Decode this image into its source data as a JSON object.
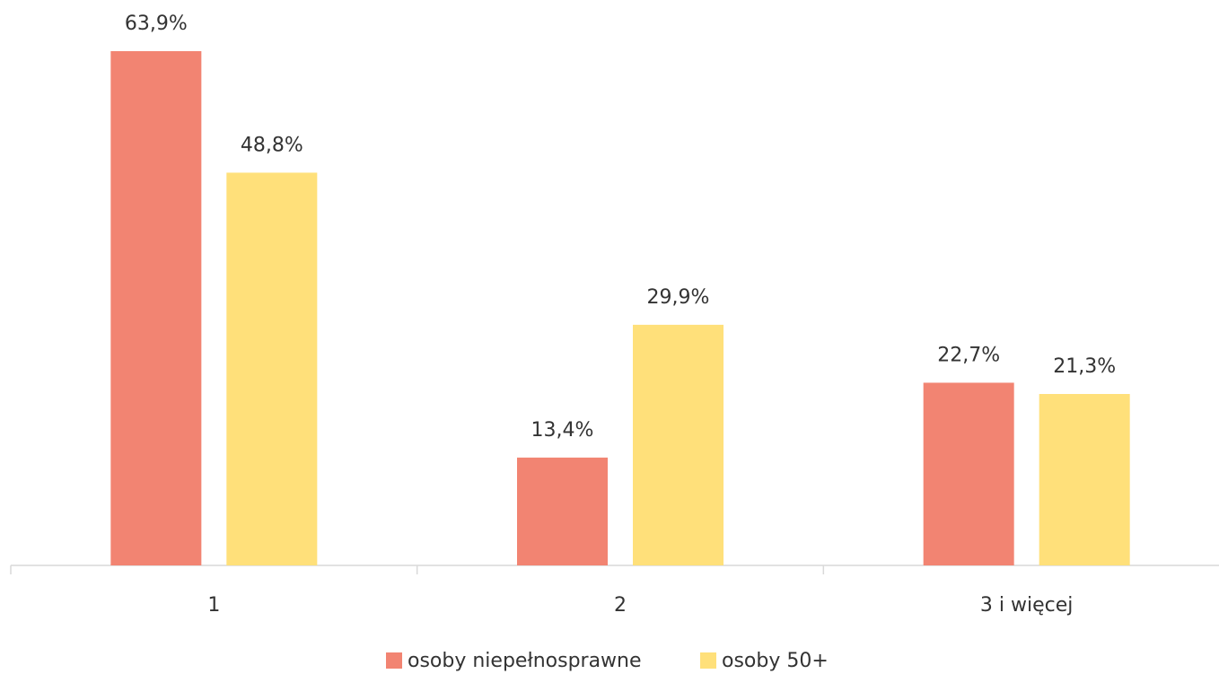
{
  "chart_data": {
    "type": "bar",
    "categories": [
      "1",
      "2",
      "3 i więcej"
    ],
    "series": [
      {
        "name": "osoby niepełnosprawne",
        "color": "#f28472",
        "values": [
          63.9,
          13.4,
          22.7
        ],
        "value_labels": [
          "63,9%",
          "13,4%",
          "22,7%"
        ]
      },
      {
        "name": "osoby 50+",
        "color": "#ffe07a",
        "values": [
          48.8,
          29.9,
          21.3
        ],
        "value_labels": [
          "48,8%",
          "29,9%",
          "21,3%"
        ]
      }
    ]
  }
}
